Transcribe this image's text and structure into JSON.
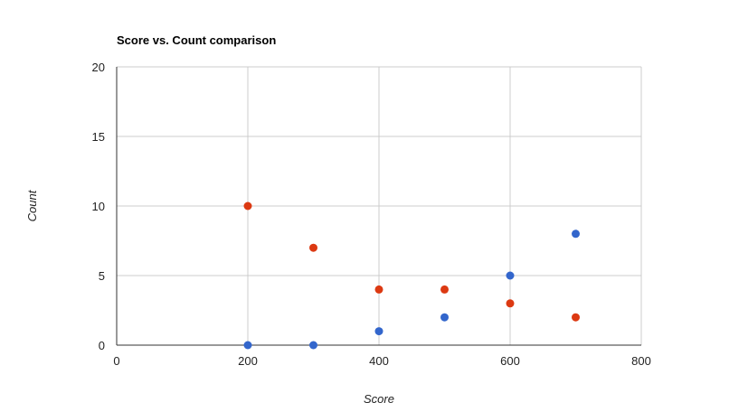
{
  "chart_data": {
    "type": "scatter",
    "title": "Score vs. Count comparison",
    "xlabel": "Score",
    "ylabel": "Count",
    "xlim": [
      0,
      800
    ],
    "ylim": [
      0,
      20
    ],
    "xticks": [
      "0",
      "200",
      "400",
      "600",
      "800"
    ],
    "yticks": [
      "0",
      "5",
      "10",
      "15",
      "20"
    ],
    "grid": true,
    "legend": "none",
    "series": [
      {
        "color": "#3366cc",
        "points": [
          {
            "x": 200,
            "y": 0
          },
          {
            "x": 300,
            "y": 0
          },
          {
            "x": 400,
            "y": 1
          },
          {
            "x": 500,
            "y": 2
          },
          {
            "x": 600,
            "y": 5
          },
          {
            "x": 700,
            "y": 8
          }
        ]
      },
      {
        "color": "#dc3912",
        "points": [
          {
            "x": 200,
            "y": 10
          },
          {
            "x": 300,
            "y": 7
          },
          {
            "x": 400,
            "y": 4
          },
          {
            "x": 500,
            "y": 4
          },
          {
            "x": 600,
            "y": 3
          },
          {
            "x": 700,
            "y": 2
          }
        ]
      }
    ]
  }
}
